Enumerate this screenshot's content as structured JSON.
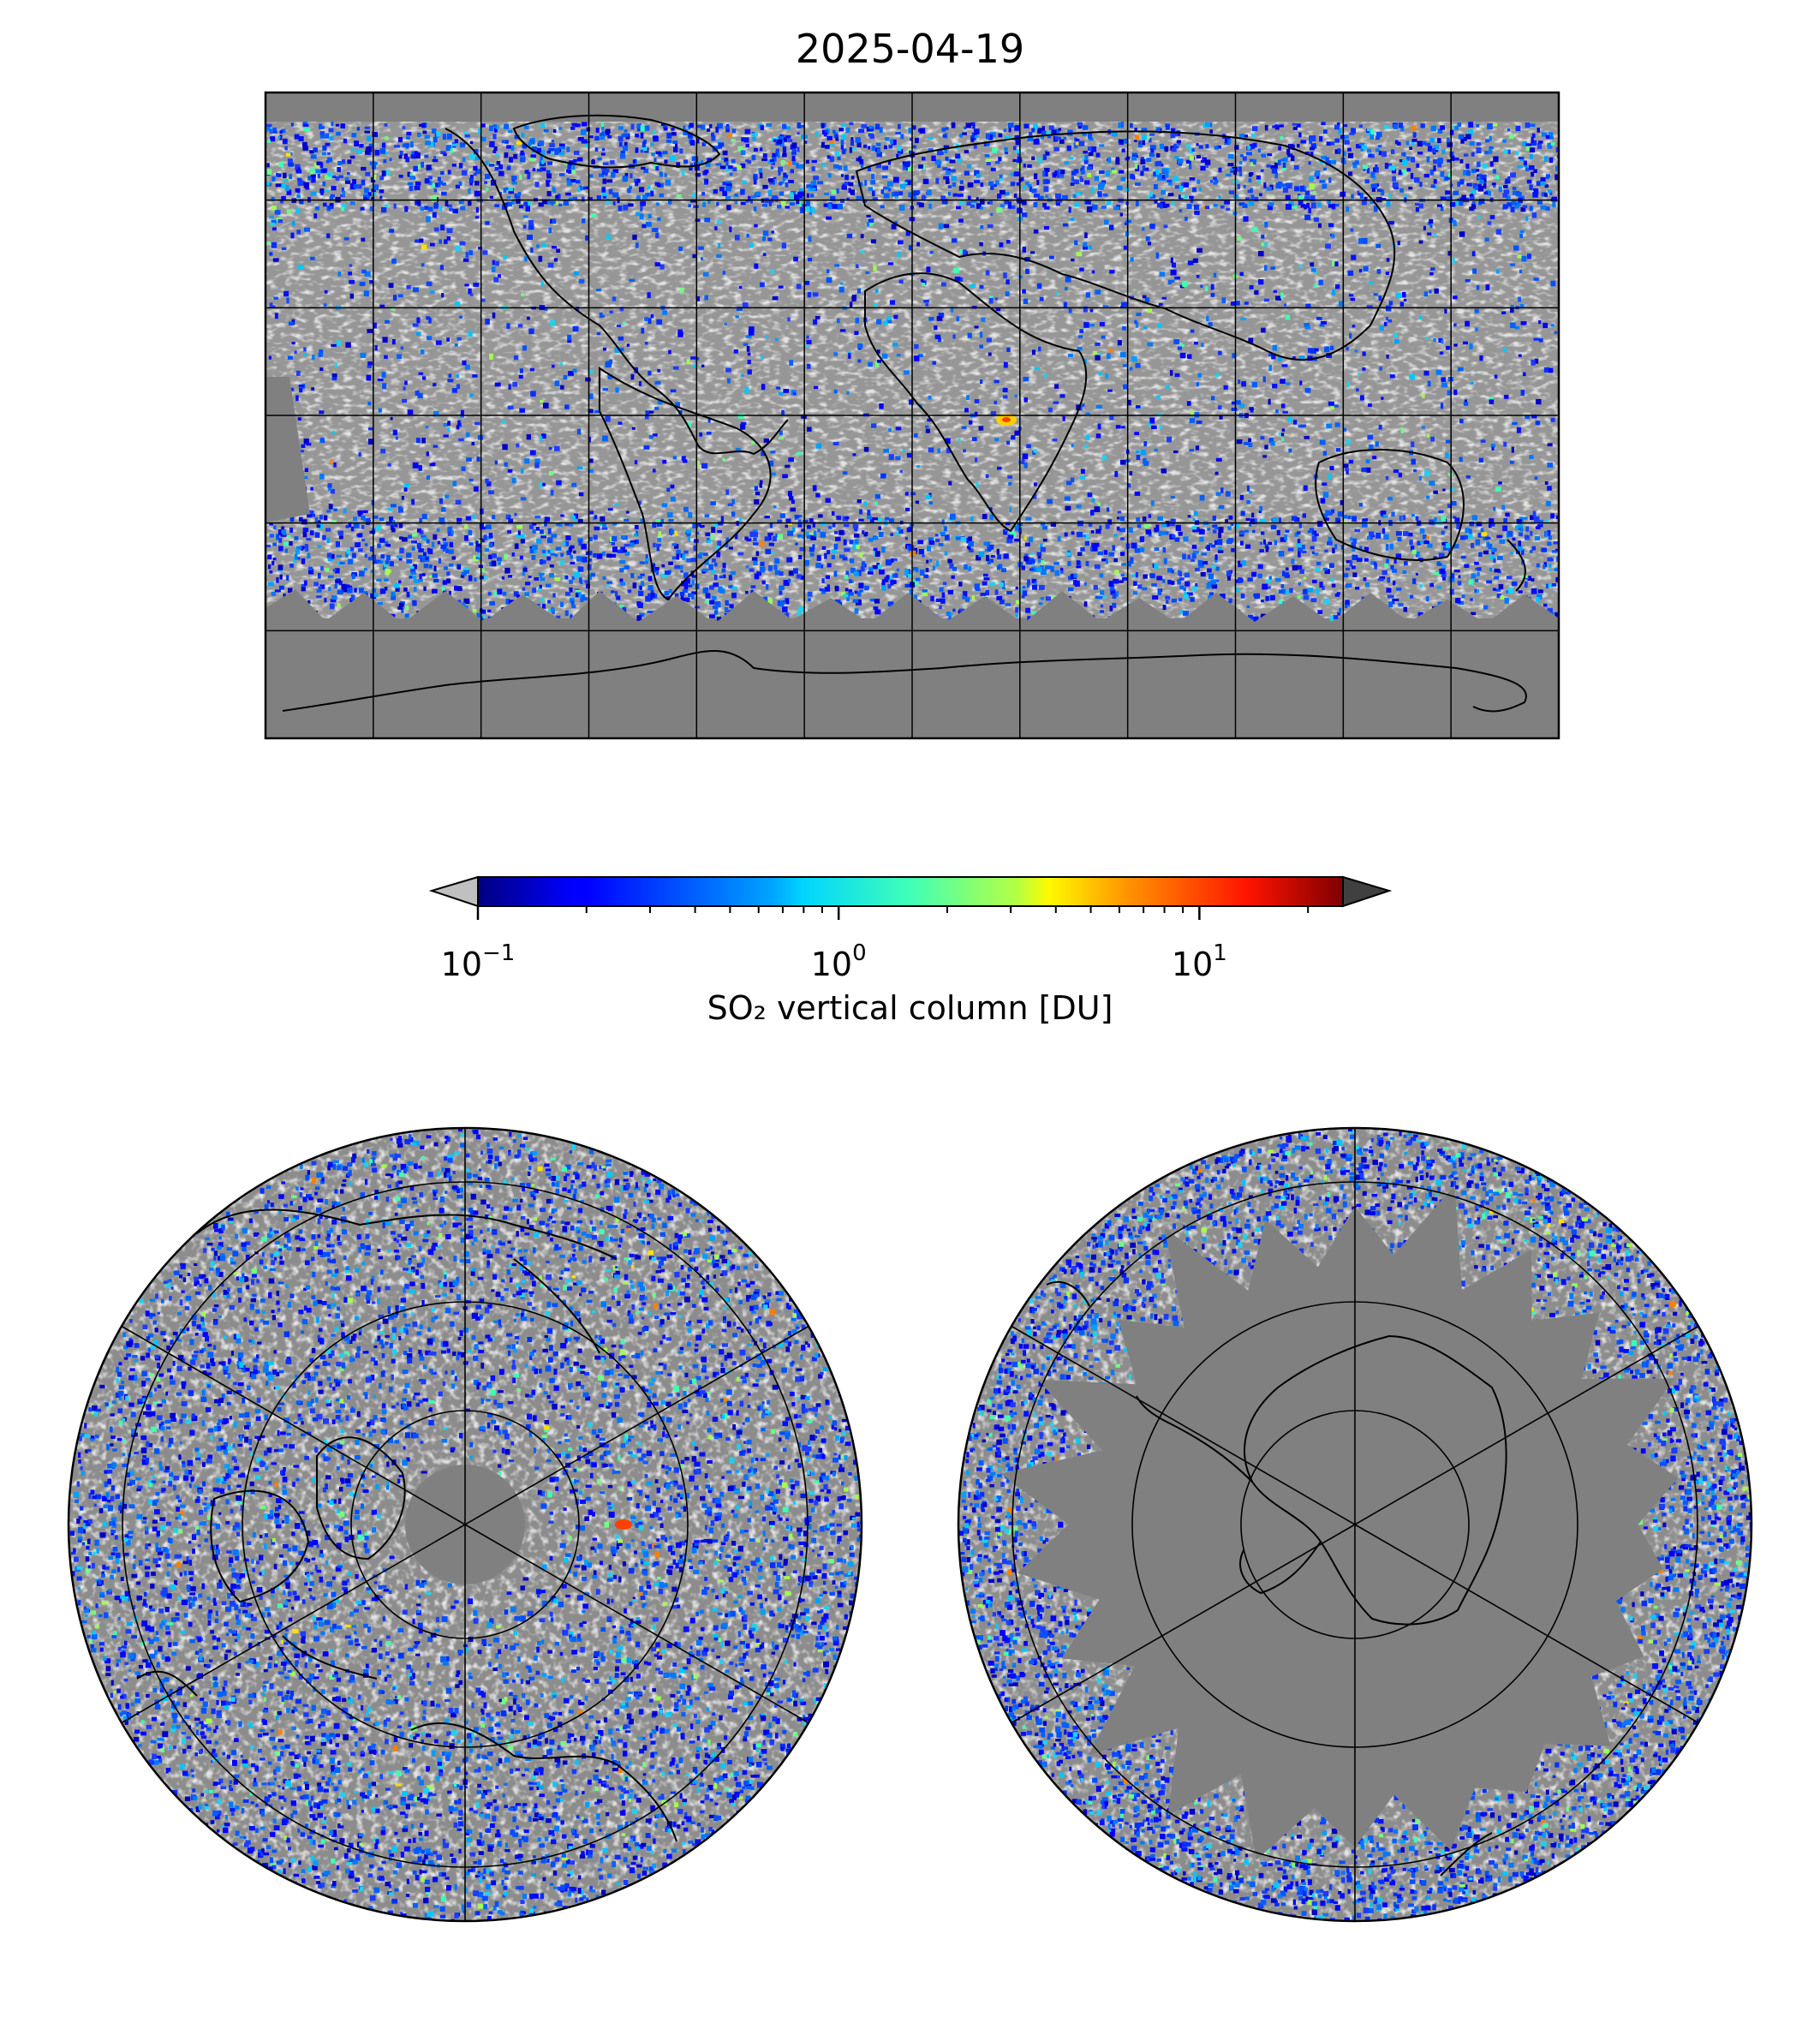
{
  "title": "2025-04-19",
  "colors": {
    "no_data": "#808080",
    "below_min": "#c0c0c0",
    "above_max": "#404040",
    "coastline": "#000000",
    "gridline": "#000000"
  },
  "colorbar": {
    "label": "SO₂ vertical column [DU]",
    "scale": "log",
    "colormap": "jet",
    "range": [
      0.1,
      25
    ],
    "extend": "both",
    "ticks": [
      {
        "value": 0.1,
        "base": "10",
        "exp": "−1"
      },
      {
        "value": 1,
        "base": "10",
        "exp": "0"
      },
      {
        "value": 10,
        "base": "10",
        "exp": "1"
      }
    ]
  },
  "maps": [
    {
      "id": "global",
      "projection": "plate-carree",
      "gridlines": "30° lon / 30° lat",
      "data_extent_lat": [
        -65,
        85
      ]
    },
    {
      "id": "north-polar",
      "projection": "north-polar-stereographic",
      "hole_lat": 83
    },
    {
      "id": "south-polar",
      "projection": "south-polar-stereographic",
      "data_boundary_lat": -65
    }
  ]
}
